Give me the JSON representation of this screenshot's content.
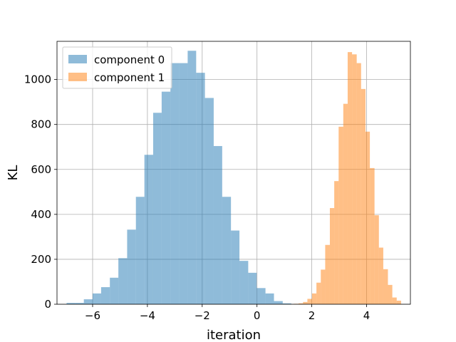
{
  "chart_data": {
    "type": "bar",
    "subtype": "histogram",
    "xlabel": "iteration",
    "ylabel": "KL",
    "xlim": [
      -7.3,
      5.6
    ],
    "ylim": [
      0,
      1170
    ],
    "xticks": [
      -6,
      -4,
      -2,
      0,
      2,
      4
    ],
    "yticks": [
      0,
      200,
      400,
      600,
      800,
      1000
    ],
    "grid": true,
    "legend_position": "top-left",
    "series": [
      {
        "name": "component 0",
        "color": "#1f77b4",
        "alpha": 0.5,
        "bins": [
          {
            "x0": -6.95,
            "x1": -6.63,
            "value": 6
          },
          {
            "x0": -6.63,
            "x1": -6.32,
            "value": 6
          },
          {
            "x0": -6.32,
            "x1": -6.0,
            "value": 22
          },
          {
            "x0": -6.0,
            "x1": -5.69,
            "value": 48
          },
          {
            "x0": -5.69,
            "x1": -5.37,
            "value": 76
          },
          {
            "x0": -5.37,
            "x1": -5.06,
            "value": 118
          },
          {
            "x0": -5.06,
            "x1": -4.74,
            "value": 205
          },
          {
            "x0": -4.74,
            "x1": -4.42,
            "value": 332
          },
          {
            "x0": -4.42,
            "x1": -4.11,
            "value": 478
          },
          {
            "x0": -4.11,
            "x1": -3.79,
            "value": 665
          },
          {
            "x0": -3.79,
            "x1": -3.48,
            "value": 852
          },
          {
            "x0": -3.48,
            "x1": -3.16,
            "value": 946
          },
          {
            "x0": -3.16,
            "x1": -2.85,
            "value": 1073
          },
          {
            "x0": -2.85,
            "x1": -2.53,
            "value": 1073
          },
          {
            "x0": -2.53,
            "x1": -2.22,
            "value": 1128
          },
          {
            "x0": -2.22,
            "x1": -1.9,
            "value": 1030
          },
          {
            "x0": -1.9,
            "x1": -1.58,
            "value": 918
          },
          {
            "x0": -1.58,
            "x1": -1.27,
            "value": 704
          },
          {
            "x0": -1.27,
            "x1": -0.95,
            "value": 478
          },
          {
            "x0": -0.95,
            "x1": -0.64,
            "value": 328
          },
          {
            "x0": -0.64,
            "x1": -0.32,
            "value": 193
          },
          {
            "x0": -0.32,
            "x1": -0.01,
            "value": 140
          },
          {
            "x0": -0.01,
            "x1": 0.31,
            "value": 72
          },
          {
            "x0": 0.31,
            "x1": 0.62,
            "value": 48
          },
          {
            "x0": 0.62,
            "x1": 0.94,
            "value": 14
          },
          {
            "x0": 0.94,
            "x1": 1.25,
            "value": 4
          }
        ]
      },
      {
        "name": "component 1",
        "color": "#ff7f0e",
        "alpha": 0.5,
        "bins": [
          {
            "x0": 1.35,
            "x1": 1.52,
            "value": 2
          },
          {
            "x0": 1.52,
            "x1": 1.68,
            "value": 4
          },
          {
            "x0": 1.68,
            "x1": 1.84,
            "value": 10
          },
          {
            "x0": 1.84,
            "x1": 2.01,
            "value": 24
          },
          {
            "x0": 2.01,
            "x1": 2.17,
            "value": 48
          },
          {
            "x0": 2.17,
            "x1": 2.33,
            "value": 96
          },
          {
            "x0": 2.33,
            "x1": 2.49,
            "value": 154
          },
          {
            "x0": 2.49,
            "x1": 2.66,
            "value": 264
          },
          {
            "x0": 2.66,
            "x1": 2.82,
            "value": 428
          },
          {
            "x0": 2.82,
            "x1": 2.98,
            "value": 548
          },
          {
            "x0": 2.98,
            "x1": 3.15,
            "value": 790
          },
          {
            "x0": 3.15,
            "x1": 3.31,
            "value": 892
          },
          {
            "x0": 3.31,
            "x1": 3.47,
            "value": 1122
          },
          {
            "x0": 3.47,
            "x1": 3.64,
            "value": 1112
          },
          {
            "x0": 3.64,
            "x1": 3.8,
            "value": 1073
          },
          {
            "x0": 3.8,
            "x1": 3.96,
            "value": 958
          },
          {
            "x0": 3.96,
            "x1": 4.12,
            "value": 768
          },
          {
            "x0": 4.12,
            "x1": 4.29,
            "value": 606
          },
          {
            "x0": 4.29,
            "x1": 4.45,
            "value": 396
          },
          {
            "x0": 4.45,
            "x1": 4.61,
            "value": 252
          },
          {
            "x0": 4.61,
            "x1": 4.78,
            "value": 156
          },
          {
            "x0": 4.78,
            "x1": 4.94,
            "value": 86
          },
          {
            "x0": 4.94,
            "x1": 5.1,
            "value": 30
          },
          {
            "x0": 5.1,
            "x1": 5.26,
            "value": 16
          }
        ]
      }
    ]
  }
}
